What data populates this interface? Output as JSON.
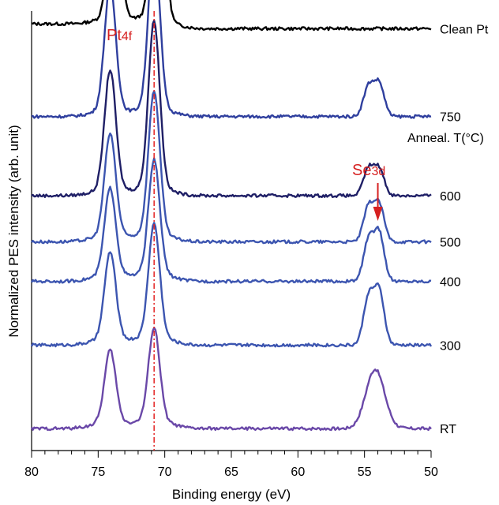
{
  "chart_data": {
    "type": "line",
    "title": "",
    "xlabel": "Binding energy (eV)",
    "ylabel": "Normalized PES intensity (arb. unit)",
    "xlim": [
      80,
      50
    ],
    "x_reversed": true,
    "x_ticks": [
      "80",
      "75",
      "70",
      "65",
      "60",
      "55",
      "50"
    ],
    "grid": false,
    "legend": "none",
    "legend_title": "Anneal. T(°C)",
    "reference_line": {
      "x": 70.8,
      "color": "#e32222",
      "style": "dash-dot"
    },
    "annotations": [
      {
        "label": "Pt",
        "sub": "4f",
        "color": "#d62020"
      },
      {
        "label": "Se",
        "sub": "3d",
        "color": "#d62020",
        "arrow_x": 54.0
      }
    ],
    "peak_positions_eV": {
      "Pt_4f5_2": 74.1,
      "Pt_4f7_2": 70.8,
      "Se_3d_a": 54.7,
      "Se_3d_b": 53.9
    },
    "series": [
      {
        "name": "Clean Pt",
        "color": "#000000",
        "baseline": 0.96,
        "pt5": 2.4,
        "pt7": 3.9,
        "pt_shift": -0.3,
        "se1": 0,
        "se2": 0,
        "step": 0.08
      },
      {
        "name": "750",
        "color": "#2f3f9e",
        "baseline": 0.76,
        "pt5": 2.1,
        "pt7": 2.8,
        "pt_shift": 0.0,
        "se1": 0.5,
        "se2": 0.55,
        "step": 0.0
      },
      {
        "name": "600",
        "color": "#1f1f66",
        "baseline": 0.58,
        "pt5": 2.0,
        "pt7": 2.8,
        "pt_shift": 0.0,
        "se1": 0.45,
        "se2": 0.45,
        "step": 0.0
      },
      {
        "name": "500",
        "color": "#3c55b0",
        "baseline": 0.475,
        "pt5": 1.7,
        "pt7": 2.4,
        "pt_shift": 0.0,
        "se1": 0.58,
        "se2": 0.62,
        "step": 0.0
      },
      {
        "name": "400",
        "color": "#3c55b0",
        "baseline": 0.385,
        "pt5": 1.45,
        "pt7": 1.9,
        "pt_shift": 0.0,
        "se1": 0.68,
        "se2": 0.8,
        "step": 0.0
      },
      {
        "name": "300",
        "color": "#3c55b0",
        "baseline": 0.24,
        "pt5": 1.45,
        "pt7": 1.9,
        "pt_shift": 0.0,
        "se1": 0.8,
        "se2": 0.9,
        "step": 0.0
      },
      {
        "name": "RT",
        "color": "#6a48a8",
        "baseline": 0.05,
        "pt5": 1.2,
        "pt7": 1.55,
        "pt_shift": 0.0,
        "se1": 0.0,
        "se2": 0.0,
        "se_broad": 1.0,
        "step": 0.0
      }
    ]
  }
}
